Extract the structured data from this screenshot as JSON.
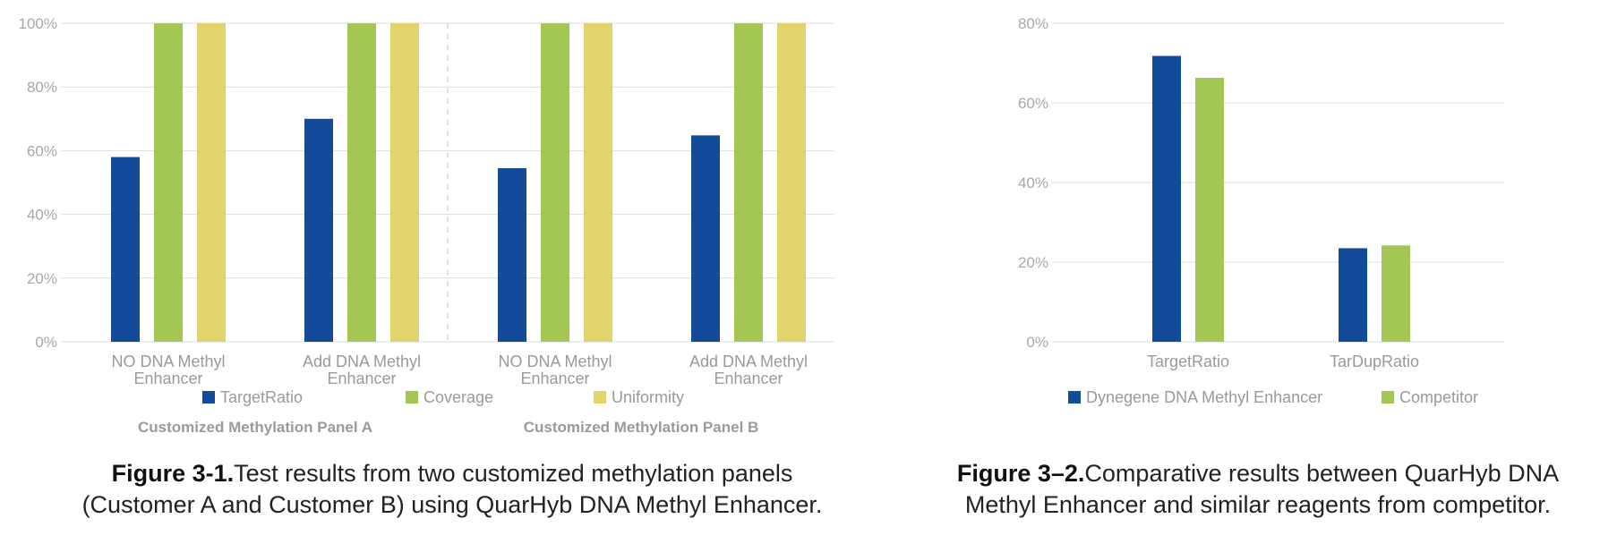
{
  "colors": {
    "blue": "#144a9a",
    "green": "#a3c654",
    "yellow": "#e2d46c",
    "grid": "#dedede",
    "text": "#9a9a9a"
  },
  "chart_data": [
    {
      "type": "bar",
      "title": "",
      "ylim": [
        0,
        100
      ],
      "yticks": [
        "0%",
        "20%",
        "40%",
        "60%",
        "80%",
        "100%"
      ],
      "ytick_values": [
        0,
        20,
        40,
        60,
        80,
        100
      ],
      "categories": [
        [
          "NO DNA Methyl",
          "Enhancer"
        ],
        [
          "Add DNA Methyl",
          "Enhancer"
        ],
        [
          "NO DNA Methyl",
          "Enhancer"
        ],
        [
          "Add DNA Methyl",
          "Enhancer"
        ]
      ],
      "series": [
        {
          "name": "TargetRatio",
          "color": "#144a9a",
          "values": [
            58,
            70,
            54.5,
            64.8
          ]
        },
        {
          "name": "Coverage",
          "color": "#a3c654",
          "values": [
            100,
            100,
            100,
            100
          ]
        },
        {
          "name": "Uniformity",
          "color": "#e2d46c",
          "values": [
            100,
            100,
            100,
            100
          ]
        }
      ],
      "groups": [
        "Customized Methylation Panel A",
        "Customized Methylation Panel B"
      ],
      "legend": "bottom"
    },
    {
      "type": "bar",
      "title": "",
      "ylim": [
        0,
        80
      ],
      "yticks": [
        "0%",
        "20%",
        "40%",
        "60%",
        "80%"
      ],
      "ytick_values": [
        0,
        20,
        40,
        60,
        80
      ],
      "categories": [
        "TargetRatio",
        "TarDupRatio"
      ],
      "series": [
        {
          "name": "Dynegene DNA Methyl Enhancer",
          "color": "#144a9a",
          "values": [
            71.8,
            23.5
          ]
        },
        {
          "name": "Competitor",
          "color": "#a3c654",
          "values": [
            66.3,
            24.2
          ]
        }
      ],
      "legend": "bottom"
    }
  ],
  "captions": {
    "fig1_bold": "Figure 3-1.",
    "fig1_text_line1": "Test results from two customized methylation panels",
    "fig1_text_line2": "(Customer A and Customer B) using QuarHyb DNA Methyl Enhancer.",
    "fig2_bold": "Figure 3–2.",
    "fig2_text_line1": "Comparative results between QuarHyb DNA",
    "fig2_text_line2": "Methyl Enhancer and similar reagents from competitor."
  }
}
